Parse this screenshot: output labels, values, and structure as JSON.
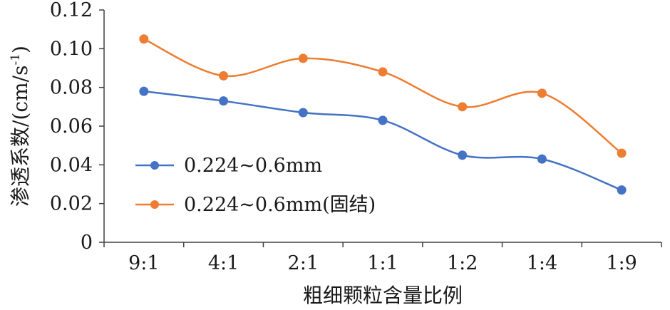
{
  "chart_data": {
    "type": "line",
    "categories": [
      "9:1",
      "4:1",
      "2:1",
      "1:1",
      "1:2",
      "1:4",
      "1:9"
    ],
    "series": [
      {
        "name": "0.224~0.6mm",
        "values": [
          0.078,
          0.073,
          0.067,
          0.063,
          0.045,
          0.043,
          0.027
        ],
        "color": "#4472C4"
      },
      {
        "name": "0.224~0.6mm(固结)",
        "values": [
          0.105,
          0.086,
          0.095,
          0.088,
          0.07,
          0.077,
          0.046
        ],
        "color": "#ED7D31"
      }
    ],
    "title": "",
    "xlabel": "粗细颗粒含量比例",
    "ylabel": "渗透系数/(cm/s",
    "ylabel_sup": "-1",
    "ylabel_close": ")",
    "ylim": [
      0,
      0.12
    ],
    "yticks": [
      0,
      0.02,
      0.04,
      0.06,
      0.08,
      0.1,
      0.12
    ],
    "ytick_labels": [
      "0",
      "0.02",
      "0.04",
      "0.06",
      "0.08",
      "0.10",
      "0.12"
    ],
    "smooth": true,
    "grid": false,
    "legend_position": "left-middle"
  }
}
